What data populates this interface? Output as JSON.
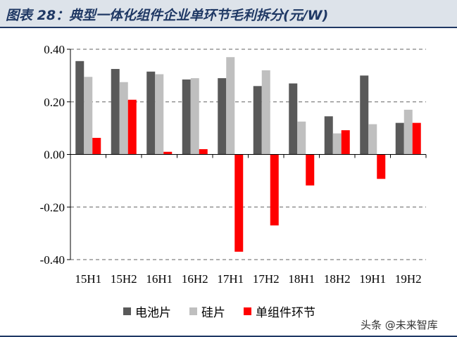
{
  "header": {
    "title": "图表 28：典型一体化组件企业单环节毛利拆分(元/W)"
  },
  "chart_data": {
    "type": "bar",
    "title": "图表 28：典型一体化组件企业单环节毛利拆分(元/W)",
    "categories": [
      "15H1",
      "15H2",
      "16H1",
      "16H2",
      "17H1",
      "17H2",
      "18H1",
      "18H2",
      "19H1",
      "19H2"
    ],
    "series": [
      {
        "name": "电池片",
        "color": "#595959",
        "values": [
          0.355,
          0.325,
          0.315,
          0.285,
          0.29,
          0.26,
          0.27,
          0.145,
          0.3,
          0.12
        ]
      },
      {
        "name": "硅片",
        "color": "#bfbfbf",
        "values": [
          0.295,
          0.275,
          0.305,
          0.29,
          0.37,
          0.32,
          0.125,
          0.08,
          0.115,
          0.17
        ]
      },
      {
        "name": "单组件环节",
        "color": "#ff0000",
        "values": [
          0.063,
          0.208,
          0.01,
          0.02,
          -0.37,
          -0.27,
          -0.118,
          0.092,
          -0.093,
          0.12
        ]
      }
    ],
    "yticks": [
      "0.40",
      "0.20",
      "0.00",
      "-0.20",
      "-0.40"
    ],
    "ylim": [
      -0.4,
      0.4
    ],
    "grid": true,
    "legend": "bottom"
  },
  "watermark": "头条 @未来智库"
}
